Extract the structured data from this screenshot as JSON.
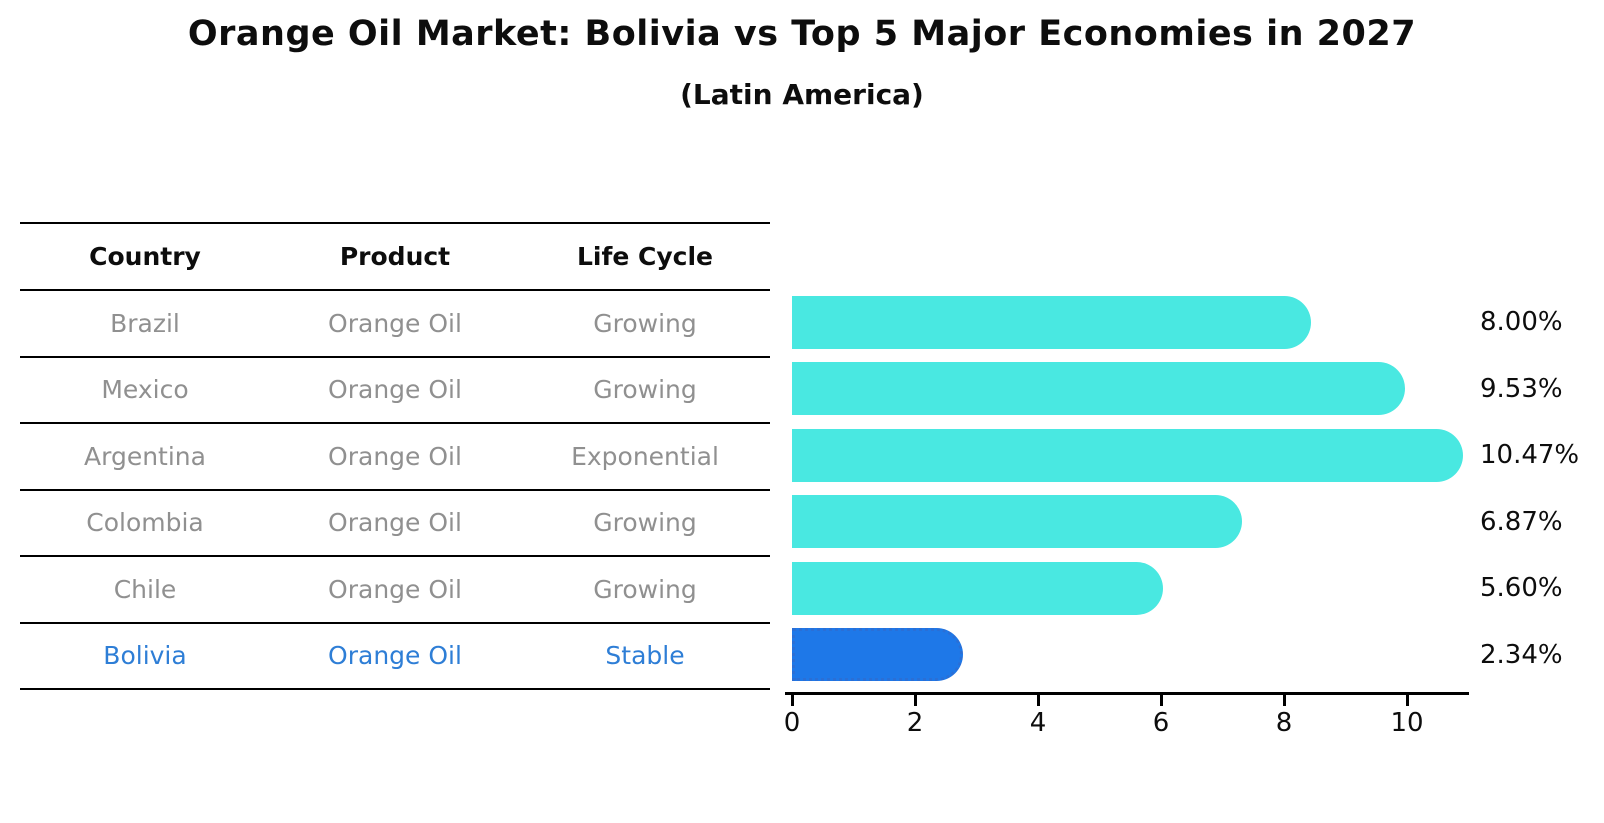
{
  "title": "Orange Oil Market: Bolivia vs Top 5 Major Economies in 2027",
  "subtitle": "(Latin America)",
  "table": {
    "headers": [
      "Country",
      "Product",
      "Life Cycle"
    ],
    "rows": [
      {
        "country": "Brazil",
        "product": "Orange Oil",
        "life_cycle": "Growing",
        "highlight": false
      },
      {
        "country": "Mexico",
        "product": "Orange Oil",
        "life_cycle": "Growing",
        "highlight": false
      },
      {
        "country": "Argentina",
        "product": "Orange Oil",
        "life_cycle": "Exponential",
        "highlight": false
      },
      {
        "country": "Colombia",
        "product": "Orange Oil",
        "life_cycle": "Growing",
        "highlight": false
      },
      {
        "country": "Chile",
        "product": "Orange Oil",
        "life_cycle": "Growing",
        "highlight": false
      },
      {
        "country": "Bolivia",
        "product": "Orange Oil",
        "life_cycle": "Stable",
        "highlight": true
      }
    ]
  },
  "chart_data": {
    "type": "bar",
    "orientation": "horizontal",
    "title": "Orange Oil Market: Bolivia vs Top 5 Major Economies in 2027",
    "subtitle": "(Latin America)",
    "categories": [
      "Brazil",
      "Mexico",
      "Argentina",
      "Colombia",
      "Chile",
      "Bolivia"
    ],
    "values": [
      8.0,
      9.53,
      10.47,
      6.87,
      5.6,
      2.34
    ],
    "value_labels": [
      "8.00%",
      "9.53%",
      "10.47%",
      "6.87%",
      "5.60%",
      "2.34%"
    ],
    "xlabel": "",
    "ylabel": "",
    "xlim": [
      0,
      11.1
    ],
    "x_ticks": [
      0,
      2,
      4,
      6,
      8,
      10
    ],
    "grid": false,
    "legend": false,
    "bar_color": "#49E8E1",
    "highlight_index": 5,
    "highlight_bar_color": "#1E78E8",
    "highlight_bar_border_color": "#2a6fd6",
    "highlight_text_color": "#2E7ED6"
  }
}
